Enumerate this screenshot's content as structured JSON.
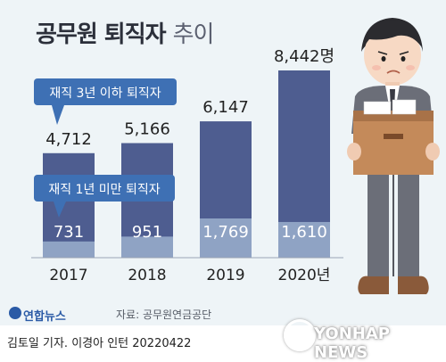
{
  "title_main": "공무원 퇴직자",
  "title_suffix": "추이",
  "source": "자료: 공무원연금공단",
  "credit": "김토일 기자. 이경아 인턴  20220422",
  "logo_label": "연합뉴스",
  "agency_watermark": "YONHAP NEWS",
  "colors": {
    "total": "#4e5d90",
    "under1": "#8fa3c4",
    "callout": "#3e70b4",
    "panel": "#eef4f7"
  },
  "chart_data": {
    "type": "bar",
    "categories": [
      "2017",
      "2018",
      "2019",
      "2020년"
    ],
    "series": [
      {
        "name": "재직 3년 이하 퇴직자",
        "values": [
          4712,
          5166,
          6147,
          8442
        ],
        "labels": [
          "4,712",
          "5,166",
          "6,147",
          "8,442명"
        ]
      },
      {
        "name": "재직 1년 미만 퇴직자",
        "values": [
          731,
          951,
          1769,
          1610
        ],
        "labels": [
          "731",
          "951",
          "1,769",
          "1,610"
        ]
      }
    ],
    "ylim": [
      0,
      9000
    ],
    "grid": false,
    "legend": "callouts"
  }
}
